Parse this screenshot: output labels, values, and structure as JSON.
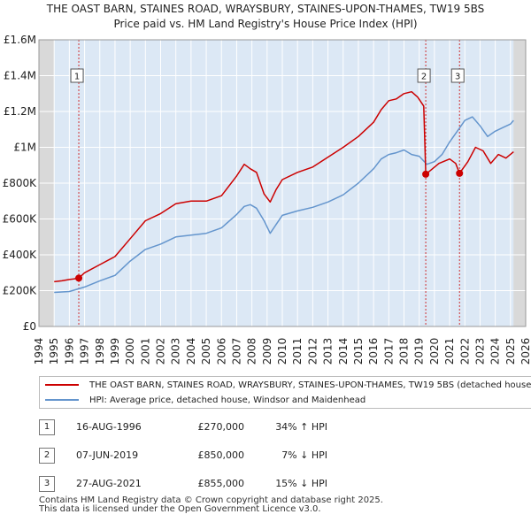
{
  "chart_data": {
    "type": "line",
    "title": "THE OAST BARN, STAINES ROAD, WRAYSBURY, STAINES-UPON-THAMES, TW19 5BS",
    "subtitle": "Price paid vs. HM Land Registry's House Price Index (HPI)",
    "xlim": [
      1994,
      2026
    ],
    "ylim": [
      0,
      1600000
    ],
    "x_ticks": [
      "1994",
      "1995",
      "1996",
      "1997",
      "1998",
      "1999",
      "2000",
      "2001",
      "2002",
      "2003",
      "2004",
      "2005",
      "2006",
      "2007",
      "2008",
      "2009",
      "2010",
      "2011",
      "2012",
      "2013",
      "2014",
      "2015",
      "2016",
      "2017",
      "2018",
      "2019",
      "2020",
      "2021",
      "2022",
      "2023",
      "2024",
      "2025",
      "2026"
    ],
    "y_ticks": [
      {
        "value": 0,
        "label": "£0"
      },
      {
        "value": 200000,
        "label": "£200K"
      },
      {
        "value": 400000,
        "label": "£400K"
      },
      {
        "value": 600000,
        "label": "£600K"
      },
      {
        "value": 800000,
        "label": "£800K"
      },
      {
        "value": 1000000,
        "label": "£1M"
      },
      {
        "value": 1200000,
        "label": "£1.2M"
      },
      {
        "value": 1400000,
        "label": "£1.4M"
      },
      {
        "value": 1600000,
        "label": "£1.6M"
      }
    ],
    "grid": true,
    "data_range": [
      1995,
      2025.2
    ],
    "series": [
      {
        "name": "THE OAST BARN, STAINES ROAD, WRAYSBURY, STAINES-UPON-THAMES, TW19 5BS (detached house)",
        "color": "#cc0000",
        "x": [
          1995,
          1995.5,
          1996,
          1996.3,
          1996.62,
          1997,
          1998,
          1999,
          2000,
          2001,
          2002,
          2003,
          2004,
          2005,
          2006,
          2007,
          2007.5,
          2007.9,
          2008.3,
          2008.8,
          2009.2,
          2009.6,
          2010,
          2011,
          2012,
          2013,
          2014,
          2015,
          2016,
          2016.5,
          2017,
          2017.5,
          2018,
          2018.5,
          2018.9,
          2019.3,
          2019.43,
          2019.8,
          2020.3,
          2021,
          2021.4,
          2021.65,
          2022.2,
          2022.7,
          2023.2,
          2023.7,
          2024.2,
          2024.7,
          2025.2
        ],
        "values": [
          250000,
          255000,
          262000,
          265000,
          270000,
          300000,
          345000,
          390000,
          490000,
          590000,
          630000,
          685000,
          700000,
          700000,
          730000,
          840000,
          905000,
          880000,
          860000,
          740000,
          695000,
          765000,
          820000,
          860000,
          890000,
          945000,
          1000000,
          1060000,
          1140000,
          1210000,
          1260000,
          1270000,
          1300000,
          1310000,
          1280000,
          1230000,
          850000,
          875000,
          910000,
          935000,
          910000,
          855000,
          920000,
          1000000,
          980000,
          910000,
          960000,
          940000,
          975000
        ]
      },
      {
        "name": "HPI: Average price, detached house, Windsor and Maidenhead",
        "color": "#6495cd",
        "x": [
          1995,
          1996,
          1997,
          1998,
          1999,
          2000,
          2001,
          2002,
          2003,
          2004,
          2005,
          2006,
          2007,
          2007.5,
          2007.9,
          2008.3,
          2008.8,
          2009.2,
          2009.6,
          2010,
          2011,
          2012,
          2013,
          2014,
          2015,
          2016,
          2016.5,
          2017,
          2017.5,
          2018,
          2018.5,
          2019,
          2019.5,
          2020,
          2020.5,
          2021,
          2021.5,
          2022,
          2022.5,
          2023,
          2023.5,
          2024,
          2024.5,
          2025,
          2025.2
        ],
        "values": [
          190000,
          195000,
          220000,
          255000,
          285000,
          365000,
          430000,
          460000,
          500000,
          510000,
          520000,
          550000,
          625000,
          670000,
          680000,
          660000,
          590000,
          520000,
          570000,
          620000,
          645000,
          665000,
          695000,
          735000,
          800000,
          880000,
          935000,
          960000,
          970000,
          985000,
          960000,
          950000,
          905000,
          920000,
          960000,
          1030000,
          1090000,
          1150000,
          1170000,
          1120000,
          1060000,
          1090000,
          1110000,
          1130000,
          1150000
        ]
      }
    ],
    "transactions": [
      {
        "id": "1",
        "date": "16-AUG-1996",
        "year": 1996.62,
        "price": 270000,
        "price_label": "£270,000",
        "hpi": "34% ↑ HPI"
      },
      {
        "id": "2",
        "date": "07-JUN-2019",
        "year": 2019.43,
        "price": 850000,
        "price_label": "£850,000",
        "hpi": "7% ↓ HPI"
      },
      {
        "id": "3",
        "date": "27-AUG-2021",
        "year": 2021.65,
        "price": 855000,
        "price_label": "£855,000",
        "hpi": "15% ↓ HPI"
      }
    ]
  },
  "colors": {
    "price_line": "#cc0000",
    "hpi_line": "#6495cd",
    "plot_bg": "#dce8f5",
    "shade_bg": "#d9d9d9",
    "grid": "#ffffff"
  },
  "legend": {
    "price_label": "THE OAST BARN, STAINES ROAD, WRAYSBURY, STAINES-UPON-THAMES, TW19 5BS (detached house)",
    "hpi_label": "HPI: Average price, detached house, Windsor and Maidenhead"
  },
  "footer": {
    "line1": "Contains HM Land Registry data © Crown copyright and database right 2025.",
    "line2": "This data is licensed under the Open Government Licence v3.0."
  }
}
